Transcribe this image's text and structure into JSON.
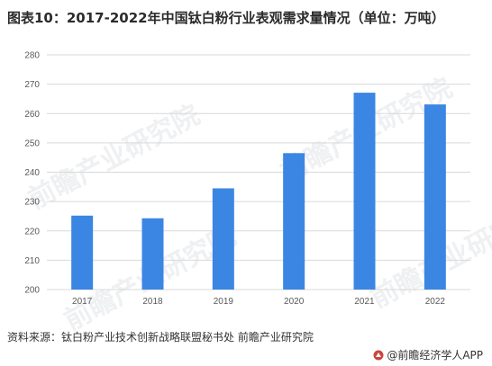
{
  "title": "图表10：2017-2022年中国钛白粉行业表观需求量情况（单位：万吨）",
  "source": "资料来源：钛白粉产业技术创新战略联盟秘书处  前瞻产业研究院",
  "brand": "@前瞻经济学人APP",
  "watermark": "前瞻产业研究院",
  "colors": {
    "bar": "#3b86e3",
    "grid": "#d9d9d9",
    "text": "#595959"
  },
  "chart_data": {
    "type": "bar",
    "title": "图表10：2017-2022年中国钛白粉行业表观需求量情况（单位：万吨）",
    "xlabel": "",
    "ylabel": "",
    "categories": [
      "2017",
      "2018",
      "2019",
      "2020",
      "2021",
      "2022"
    ],
    "values": [
      225.2,
      224.3,
      234.5,
      246.5,
      267.1,
      263.1
    ],
    "ylim": [
      200,
      280
    ],
    "yticks": [
      200,
      210,
      220,
      230,
      240,
      250,
      260,
      270,
      280
    ],
    "grid": true,
    "legend": "none"
  }
}
